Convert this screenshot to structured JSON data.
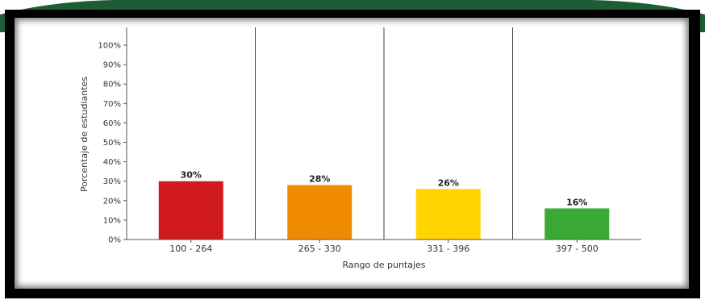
{
  "chart_data": {
    "type": "bar",
    "title": "",
    "xlabel": "Rango de puntajes",
    "ylabel": "Porcentaje de estudiantes",
    "ylim": [
      0,
      100
    ],
    "yticks": [
      "0%",
      "10%",
      "20%",
      "30%",
      "40%",
      "50%",
      "60%",
      "70%",
      "80%",
      "90%",
      "100%"
    ],
    "categories": [
      "100 - 264",
      "265 - 330",
      "331 - 396",
      "397 - 500"
    ],
    "values": [
      30,
      28,
      26,
      16
    ],
    "value_labels": [
      "30%",
      "28%",
      "26%",
      "16%"
    ],
    "colors": [
      "#d11a1c",
      "#f08a00",
      "#ffd400",
      "#3aaa35"
    ],
    "grid": false,
    "legend": "none"
  },
  "colors": {
    "banner": "#1e5c35",
    "frame": "#000000"
  }
}
